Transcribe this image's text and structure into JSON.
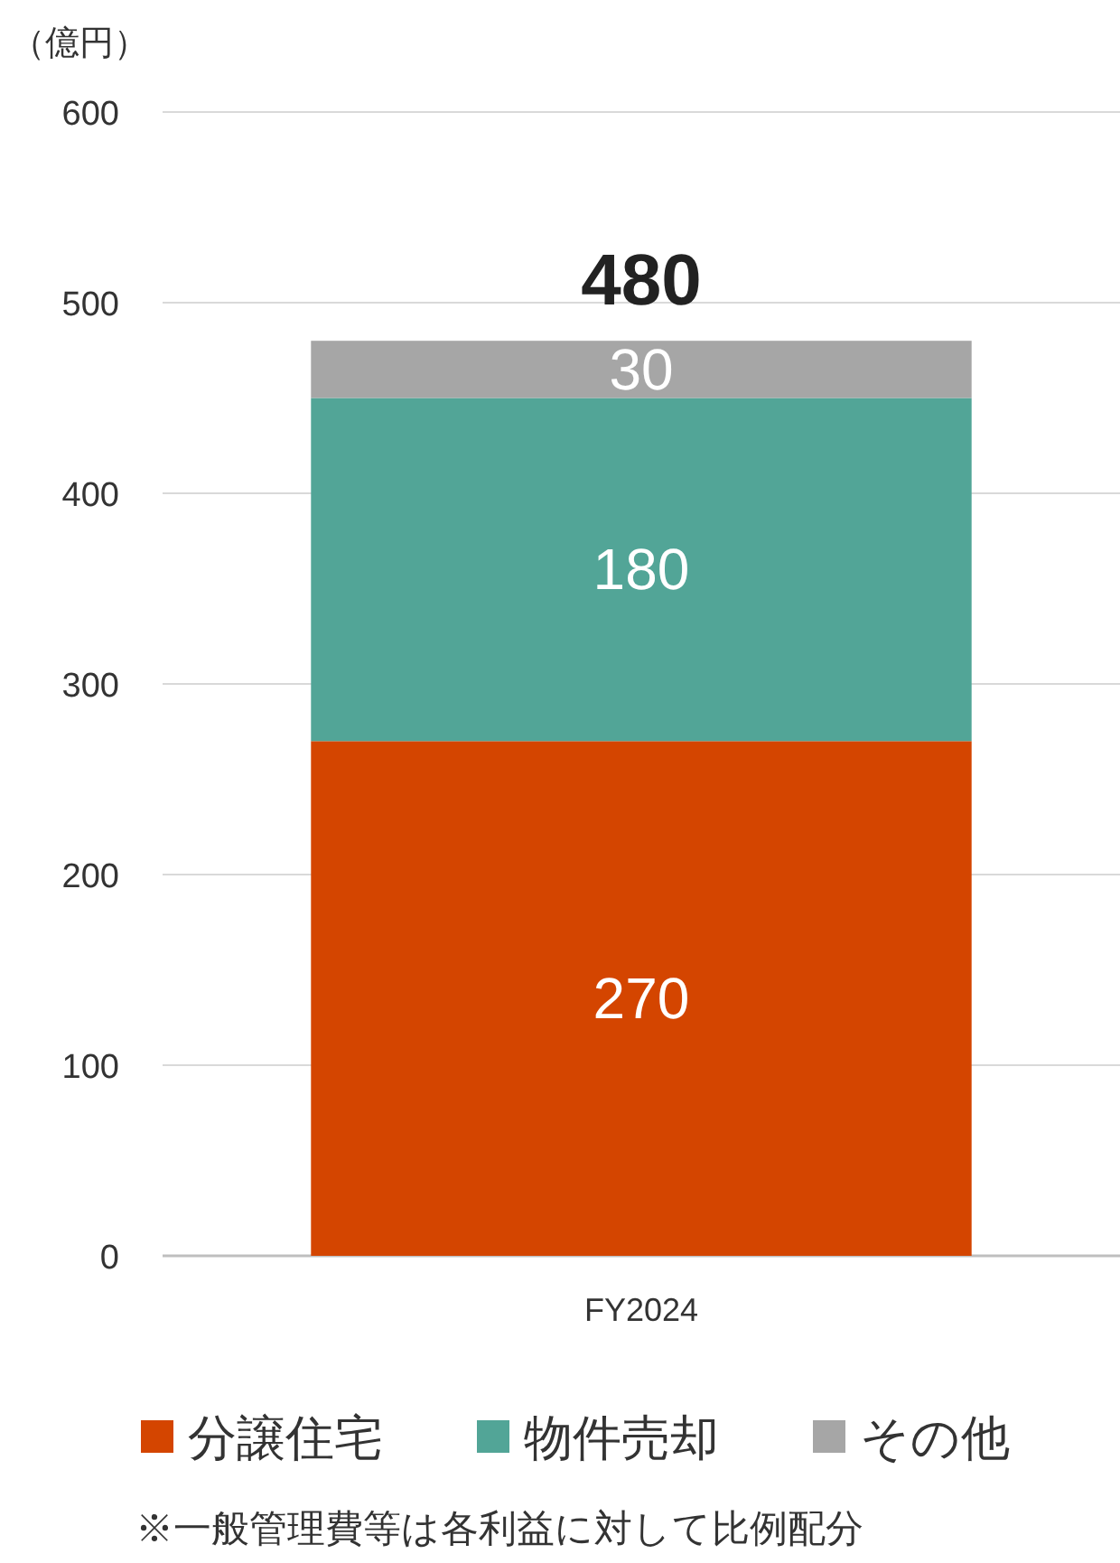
{
  "chart_data": {
    "type": "bar",
    "stacked": true,
    "ylabel": "（億円）",
    "categories": [
      "FY2024"
    ],
    "series": [
      {
        "name": "分譲住宅",
        "color": "#d44500",
        "values": [
          270
        ]
      },
      {
        "name": "物件売却",
        "color": "#52a597",
        "values": [
          180
        ]
      },
      {
        "name": "その他",
        "color": "#a6a6a6",
        "values": [
          30
        ]
      }
    ],
    "ylim": [
      0,
      600
    ],
    "yticks": [
      0,
      100,
      200,
      300,
      400,
      500,
      600
    ],
    "grid": "y",
    "data_labels": true,
    "totals": [
      "480"
    ],
    "legend": "bottom",
    "annotations": [
      "※一般管理費等は各利益に対して比例配分"
    ]
  }
}
